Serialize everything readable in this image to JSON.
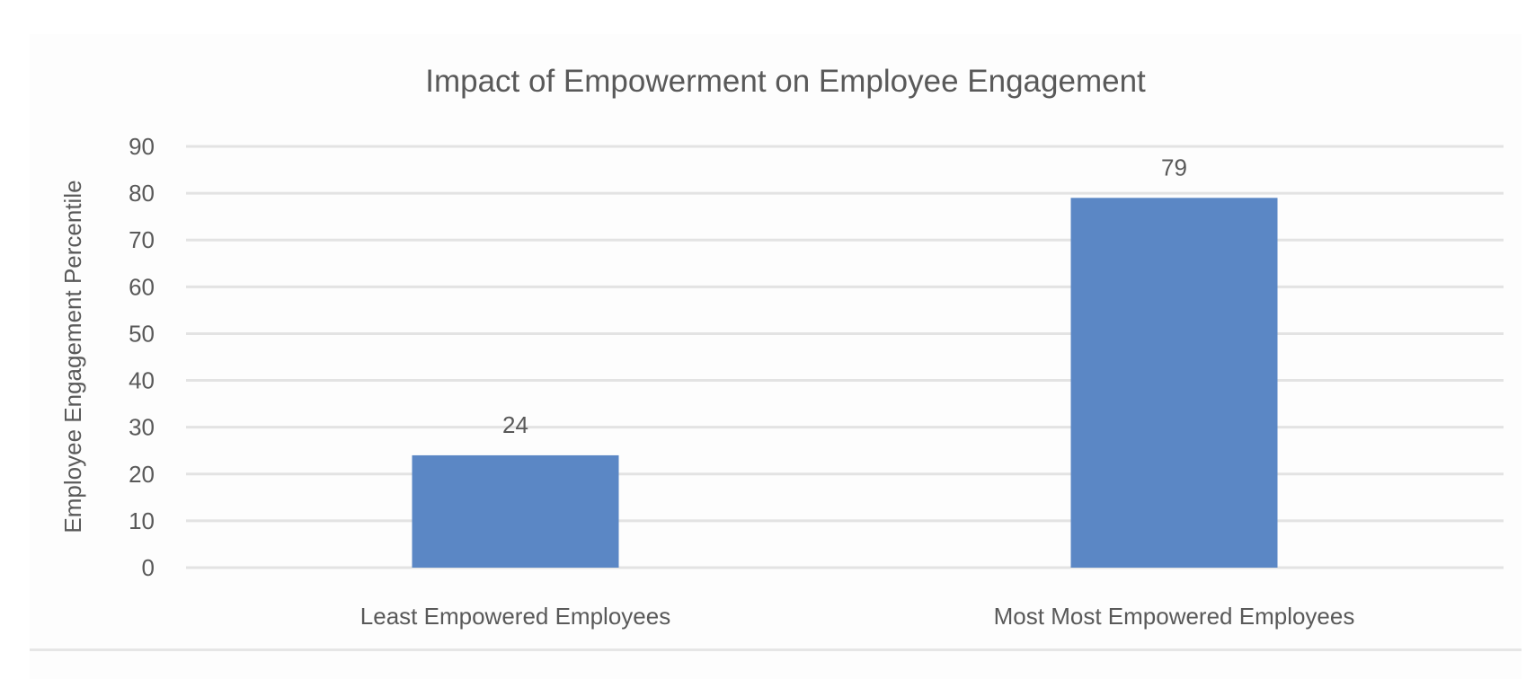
{
  "chart_data": {
    "type": "bar",
    "title": "Impact of Empowerment on Employee Engagement",
    "xlabel": "",
    "ylabel": "Employee Engagement Percentile",
    "categories": [
      "Least Empowered Employees",
      "Most Most Empowered Employees"
    ],
    "values": [
      24,
      79
    ],
    "data_labels": [
      "24",
      "79"
    ],
    "ylim": [
      0,
      90
    ],
    "yticks": [
      0,
      10,
      20,
      30,
      40,
      50,
      60,
      70,
      80,
      90
    ],
    "grid": true,
    "legend": "none",
    "bar_color": "#5b87c5"
  }
}
